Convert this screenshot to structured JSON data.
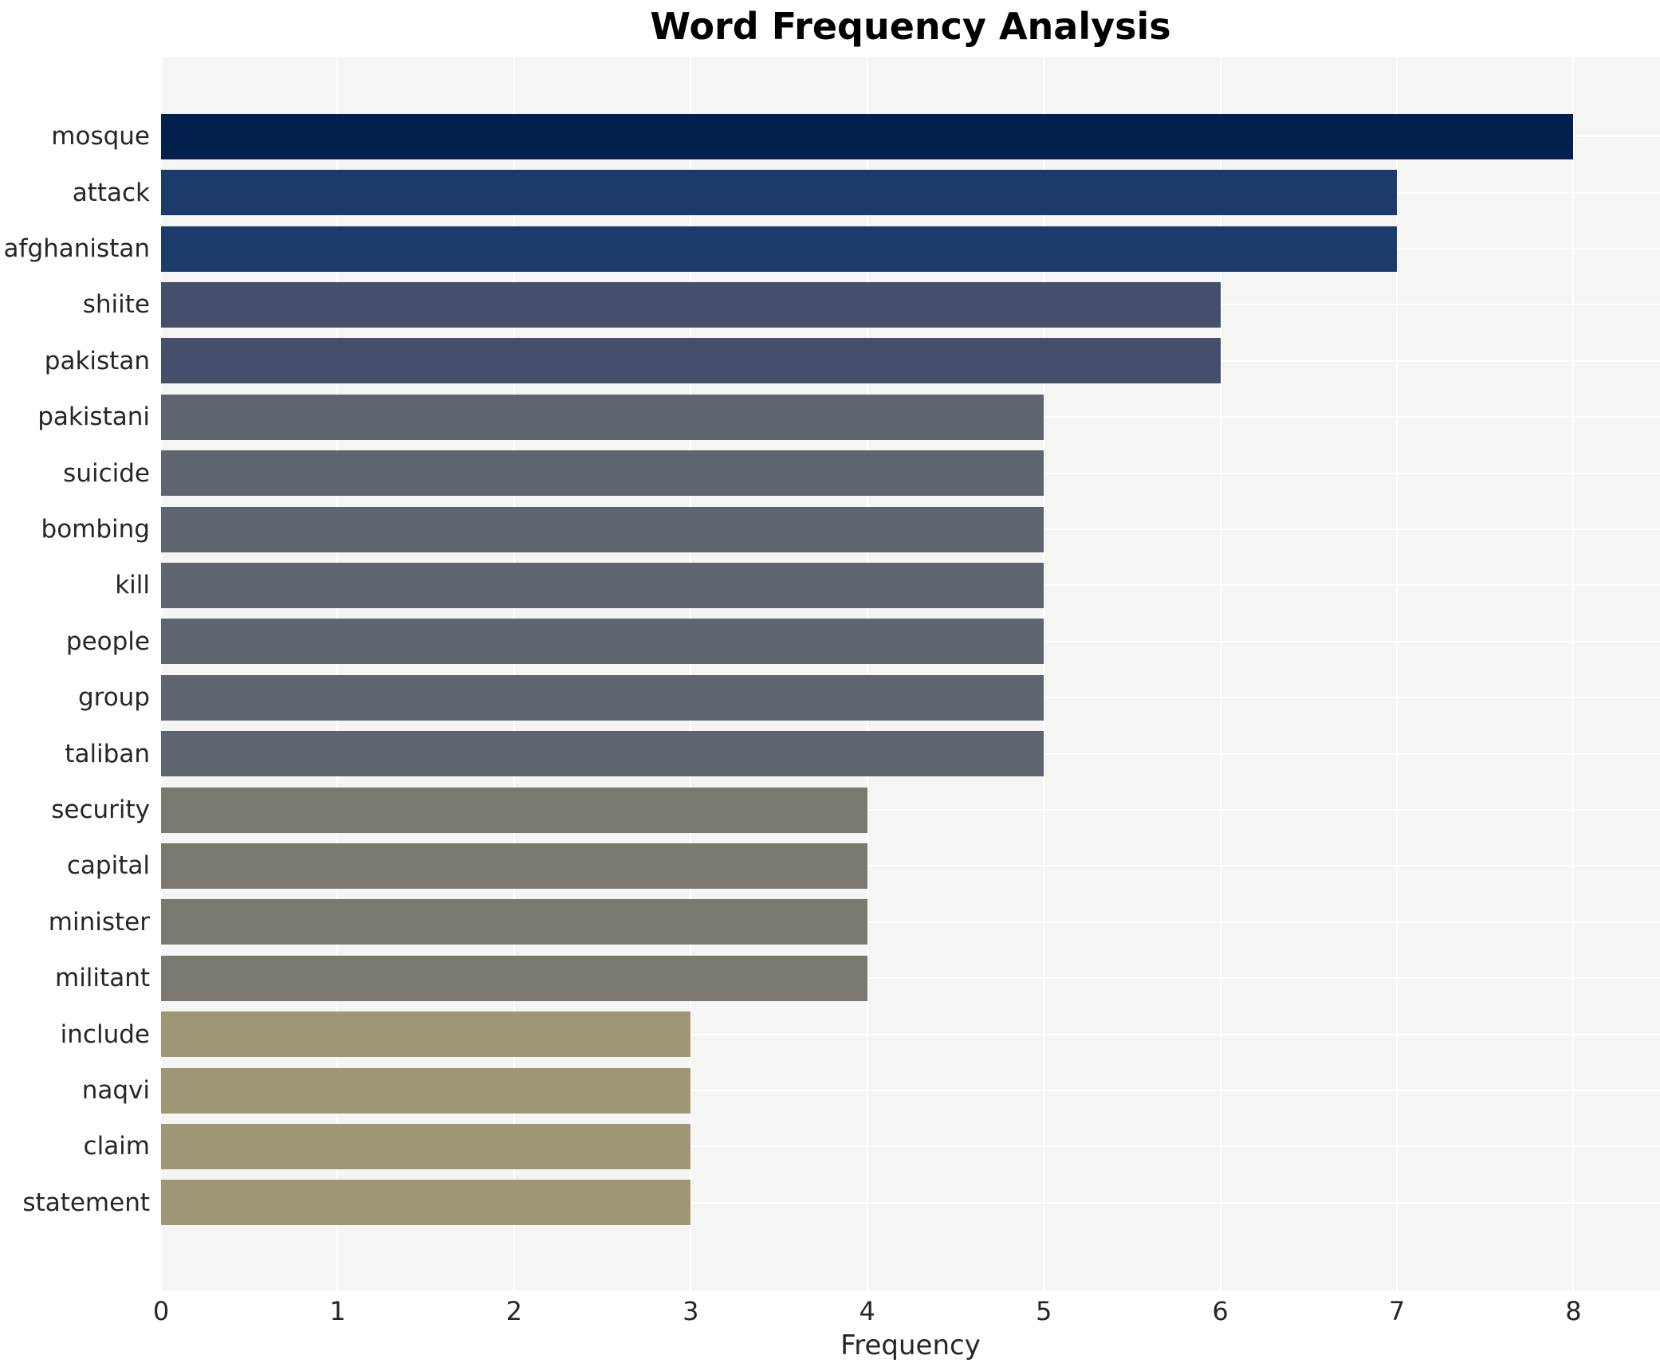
{
  "chart_data": {
    "type": "bar",
    "orientation": "horizontal",
    "title": "Word Frequency Analysis",
    "xlabel": "Frequency",
    "ylabel": "",
    "categories": [
      "mosque",
      "attack",
      "afghanistan",
      "shiite",
      "pakistan",
      "pakistani",
      "suicide",
      "bombing",
      "kill",
      "people",
      "group",
      "taliban",
      "security",
      "capital",
      "minister",
      "militant",
      "include",
      "naqvi",
      "claim",
      "statement"
    ],
    "values": [
      8,
      7,
      7,
      6,
      6,
      5,
      5,
      5,
      5,
      5,
      5,
      5,
      4,
      4,
      4,
      4,
      3,
      3,
      3,
      3
    ],
    "bar_colors": [
      "#02204e",
      "#1d3a6d",
      "#1d3a6d",
      "#454f6b",
      "#454f6b",
      "#5f6570",
      "#5f6570",
      "#5f6570",
      "#5f6570",
      "#5f6570",
      "#5f6570",
      "#5f6570",
      "#7b7870",
      "#7b7870",
      "#7b7870",
      "#7b7870",
      "#9e9674",
      "#9e9674",
      "#9e9674",
      "#9e9674"
    ],
    "xticks": [
      0,
      1,
      2,
      3,
      4,
      5,
      6,
      7,
      8
    ],
    "xlim": [
      0,
      8.49
    ],
    "grid": "on",
    "legend": "none",
    "colors": {
      "plot_background": "#f5f5f3",
      "gridline": "#ffffff",
      "tick_text": "#262626",
      "title_text": "#000000",
      "page_background": "#ffffff"
    }
  }
}
